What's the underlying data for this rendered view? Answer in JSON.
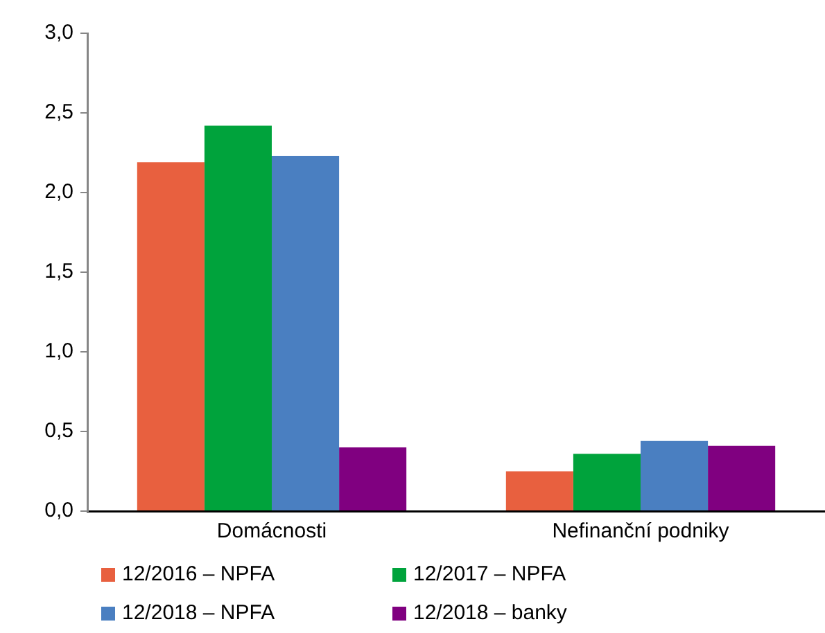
{
  "chart_data": {
    "type": "bar",
    "categories": [
      "Domácnosti",
      "Nefinanční podniky"
    ],
    "series": [
      {
        "name": "12/2016 – NPFA",
        "color": "#e8603f",
        "values": [
          2.19,
          0.25
        ]
      },
      {
        "name": "12/2017 – NPFA",
        "color": "#00a33c",
        "values": [
          2.42,
          0.36
        ]
      },
      {
        "name": "12/2018 – NPFA",
        "color": "#4a7fc1",
        "values": [
          2.23,
          0.44
        ]
      },
      {
        "name": "12/2018 – banky",
        "color": "#800080",
        "values": [
          0.4,
          0.41
        ]
      }
    ],
    "ylim": [
      0,
      3
    ],
    "yticks": [
      {
        "value": 0,
        "label": "0,0"
      },
      {
        "value": 0.5,
        "label": "0,5"
      },
      {
        "value": 1,
        "label": "1,0"
      },
      {
        "value": 1.5,
        "label": "1,5"
      },
      {
        "value": 2,
        "label": "2,0"
      },
      {
        "value": 2.5,
        "label": "2,5"
      },
      {
        "value": 3,
        "label": "3,0"
      }
    ],
    "legend": "bottom"
  }
}
